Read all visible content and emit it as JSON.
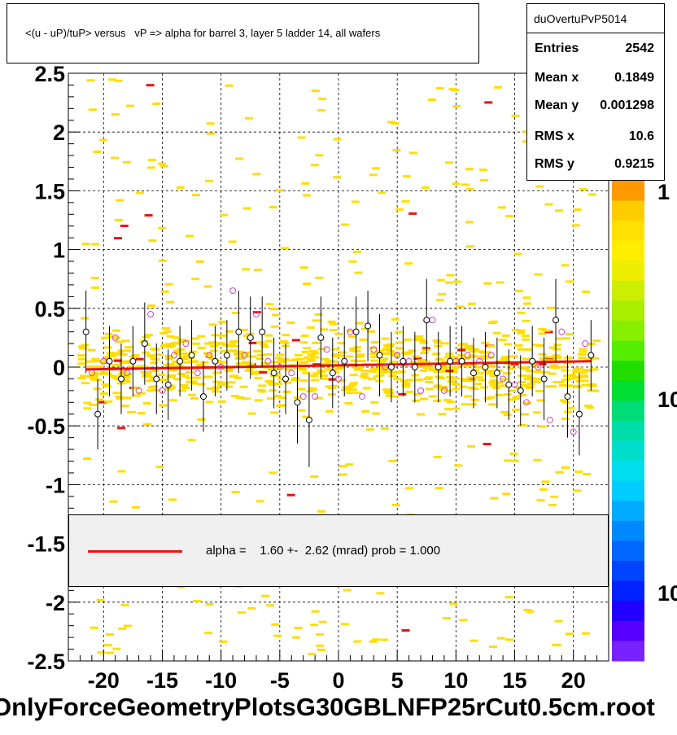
{
  "title": "<(u - uP)/tuP> versus   vP => alpha for barrel 3, layer 5 ladder 14, all wafers",
  "stats": {
    "name": "duOvertuPvP5014",
    "rows": [
      {
        "label": "Entries",
        "value": "2542"
      },
      {
        "label": "Mean x",
        "value": "0.1849"
      },
      {
        "label": "Mean y",
        "value": "0.001298"
      },
      {
        "label": "RMS x",
        "value": "10.6"
      },
      {
        "label": "RMS y",
        "value": "0.9215"
      }
    ]
  },
  "legend": {
    "text": "alpha =    1.60 +-  2.62 (mrad) prob = 1.000",
    "color": "#ee1111"
  },
  "xlabel": "OnlyForceGeometryPlotsG30GBLNFP25rCut0.5cm.root",
  "palette_labels": [
    "1",
    "10",
    "10"
  ],
  "chart_data": {
    "type": "scatter",
    "title": "<(u - uP)/tuP> versus   vP => alpha for barrel 3, layer 5 ladder 14, all wafers",
    "xlim": [
      -23,
      23
    ],
    "ylim": [
      -2.5,
      2.5
    ],
    "xticks": [
      "-20",
      "-15",
      "-10",
      "-5",
      "0",
      "5",
      "10",
      "15",
      "20"
    ],
    "xtick_values": [
      -20,
      -15,
      -10,
      -5,
      0,
      5,
      10,
      15,
      20
    ],
    "yticks": [
      "2.5",
      "2",
      "1.5",
      "1",
      "0.5",
      "0",
      "-0.5",
      "-1",
      "-1.5",
      "-2",
      "-2.5"
    ],
    "ytick_values": [
      2.5,
      2,
      1.5,
      1,
      0.5,
      0,
      -0.5,
      -1,
      -1.5,
      -2,
      -2.5
    ],
    "grid": true,
    "fit_line": {
      "x": [
        -21.5,
        21.5
      ],
      "y": [
        -0.02,
        0.05
      ],
      "color": "#ee1111"
    },
    "profile_black": {
      "x": [
        -21.5,
        -20.5,
        -19.5,
        -18.5,
        -17.5,
        -16.5,
        -15.5,
        -14.5,
        -13.5,
        -12.5,
        -11.5,
        -10.5,
        -9.5,
        -8.5,
        -7.5,
        -6.5,
        -5.5,
        -4.5,
        -3.5,
        -2.5,
        -1.5,
        -0.5,
        0.5,
        1.5,
        2.5,
        3.5,
        4.5,
        5.5,
        6.5,
        7.5,
        8.5,
        9.5,
        10.5,
        11.5,
        12.5,
        13.5,
        14.5,
        15.5,
        16.5,
        17.5,
        18.5,
        19.5,
        20.5,
        21.5
      ],
      "y": [
        0.3,
        -0.4,
        0.05,
        -0.1,
        0.05,
        0.2,
        -0.1,
        -0.15,
        0.05,
        0.1,
        -0.25,
        0.05,
        0.1,
        0.3,
        0.25,
        0.3,
        -0.05,
        -0.1,
        -0.3,
        -0.45,
        0.25,
        -0.05,
        0.05,
        0.3,
        0.35,
        0.1,
        0.0,
        0.05,
        0.0,
        0.4,
        0.0,
        0.05,
        0.05,
        -0.05,
        0.0,
        -0.05,
        -0.15,
        -0.2,
        0.05,
        -0.1,
        0.4,
        -0.25,
        -0.4,
        0.1
      ],
      "err": [
        0.35,
        0.3,
        0.3,
        0.3,
        0.3,
        0.35,
        0.3,
        0.3,
        0.3,
        0.3,
        0.3,
        0.3,
        0.3,
        0.35,
        0.35,
        0.3,
        0.3,
        0.3,
        0.35,
        0.4,
        0.35,
        0.3,
        0.3,
        0.3,
        0.3,
        0.35,
        0.3,
        0.3,
        0.3,
        0.35,
        0.3,
        0.3,
        0.3,
        0.3,
        0.3,
        0.3,
        0.3,
        0.3,
        0.3,
        0.35,
        0.35,
        0.35,
        0.35,
        0.3
      ]
    },
    "profile_magenta": {
      "x": [
        -21,
        -20,
        -19,
        -18,
        -17,
        -16,
        -15,
        -14,
        -13,
        -12,
        -11,
        -10,
        -9,
        -8,
        -7,
        -6,
        -5,
        -4,
        -3,
        -2,
        -1,
        0,
        1,
        2,
        3,
        4,
        5,
        6,
        7,
        8,
        9,
        10,
        11,
        12,
        13,
        14,
        15,
        16,
        17,
        18,
        19,
        20,
        21
      ],
      "y": [
        -0.05,
        0.05,
        0.25,
        -0.05,
        -0.2,
        0.45,
        -0.2,
        0.1,
        0.2,
        -0.05,
        0.1,
        0.0,
        0.65,
        0.1,
        0.45,
        0.05,
        0.0,
        -0.05,
        -0.25,
        -0.25,
        0.15,
        -0.1,
        0.3,
        -0.25,
        0.15,
        0.0,
        0.1,
        0.05,
        -0.2,
        0.4,
        -0.2,
        0.05,
        0.1,
        0.05,
        0.1,
        -0.1,
        -0.15,
        -0.3,
        0.0,
        -0.45,
        0.3,
        -0.55,
        0.2
      ],
      "err": []
    },
    "series": [
      {
        "name": "",
        "color": "#ffdd00"
      },
      {
        "name": "",
        "color": "#ee1111"
      }
    ]
  }
}
